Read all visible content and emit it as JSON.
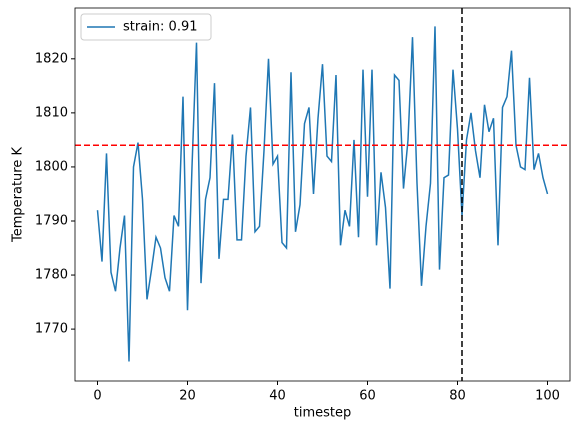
{
  "chart_data": {
    "type": "line",
    "x": [
      0,
      1,
      2,
      3,
      4,
      5,
      6,
      7,
      8,
      9,
      10,
      11,
      12,
      13,
      14,
      15,
      16,
      17,
      18,
      19,
      20,
      21,
      22,
      23,
      24,
      25,
      26,
      27,
      28,
      29,
      30,
      31,
      32,
      33,
      34,
      35,
      36,
      37,
      38,
      39,
      40,
      41,
      42,
      43,
      44,
      45,
      46,
      47,
      48,
      49,
      50,
      51,
      52,
      53,
      54,
      55,
      56,
      57,
      58,
      59,
      60,
      61,
      62,
      63,
      64,
      65,
      66,
      67,
      68,
      69,
      70,
      71,
      72,
      73,
      74,
      75,
      76,
      77,
      78,
      79,
      80,
      81,
      82,
      83,
      84,
      85,
      86,
      87,
      88,
      89,
      90,
      91,
      92,
      93,
      94,
      95,
      96,
      97,
      98,
      99,
      100
    ],
    "series": [
      {
        "name": "strain: 0.91",
        "color": "#1f77b4",
        "values": [
          1792,
          1782.5,
          1802.5,
          1780.5,
          1777,
          1785,
          1791,
          1764,
          1800,
          1804.5,
          1794,
          1775.5,
          1781,
          1787,
          1785,
          1779.5,
          1777,
          1791,
          1789,
          1813,
          1773.5,
          1800,
          1823,
          1778.5,
          1794,
          1798,
          1815.5,
          1783,
          1794,
          1794,
          1806,
          1786.5,
          1786.5,
          1802,
          1811,
          1788,
          1789,
          1803,
          1820,
          1800.5,
          1802,
          1786,
          1785,
          1817.5,
          1788,
          1793,
          1808,
          1811,
          1795,
          1809,
          1819,
          1802,
          1801,
          1817,
          1785.5,
          1792,
          1789,
          1805,
          1787,
          1818,
          1794.5,
          1818,
          1785.5,
          1799,
          1792.5,
          1777.5,
          1817,
          1816,
          1796,
          1805,
          1824,
          1797,
          1778,
          1789,
          1797,
          1826,
          1781,
          1798,
          1798.5,
          1818,
          1807,
          1791,
          1805,
          1810,
          1803,
          1798,
          1811.5,
          1806.5,
          1809,
          1785.5,
          1811,
          1813,
          1821.5,
          1804,
          1800,
          1799.5,
          1816.5,
          1799.5,
          1802.5,
          1798,
          1795
        ]
      }
    ],
    "xlabel": "timestep",
    "ylabel": "Temperature K",
    "xlim": [
      -5,
      105
    ],
    "ylim": [
      1760.4,
      1829.4
    ],
    "xticks": [
      0,
      20,
      40,
      60,
      80,
      100
    ],
    "yticks": [
      1770,
      1780,
      1790,
      1800,
      1810,
      1820
    ],
    "hlines": [
      {
        "value": 1804,
        "color": "#ff0000"
      }
    ],
    "vlines": [
      {
        "value": 81,
        "color": "#000000"
      }
    ],
    "legend": "upper left"
  }
}
